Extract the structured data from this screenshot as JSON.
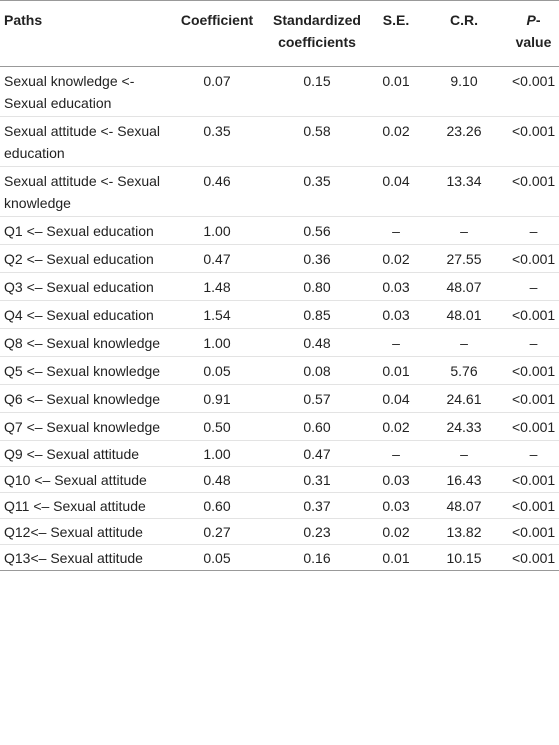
{
  "table": {
    "header": [
      "Paths",
      "Coefficient",
      "Standardized coefficients",
      "S.E.",
      "C.R.",
      "P-value"
    ],
    "rows": [
      [
        "Sexual knowledge <- Sexual education",
        "0.07",
        "0.15",
        "0.01",
        "9.10",
        "<0.001"
      ],
      [
        "Sexual attitude <- Sexual education",
        "0.35",
        "0.58",
        "0.02",
        "23.26",
        "<0.001"
      ],
      [
        "Sexual attitude <- Sexual knowledge",
        "0.46",
        "0.35",
        "0.04",
        "13.34",
        "<0.001"
      ],
      [
        "Q1 <– Sexual education",
        "1.00",
        "0.56",
        "–",
        "–",
        "–"
      ],
      [
        "Q2 <– Sexual education",
        "0.47",
        "0.36",
        "0.02",
        "27.55",
        "<0.001"
      ],
      [
        "Q3 <– Sexual education",
        "1.48",
        "0.80",
        "0.03",
        "48.07",
        "–"
      ],
      [
        "Q4 <– Sexual education",
        "1.54",
        "0.85",
        "0.03",
        "48.01",
        "<0.001"
      ],
      [
        "Q8 <– Sexual knowledge",
        "1.00",
        "0.48",
        "–",
        "–",
        "–"
      ],
      [
        "Q5 <– Sexual knowledge",
        "0.05",
        "0.08",
        "0.01",
        "5.76",
        "<0.001"
      ],
      [
        "Q6 <– Sexual knowledge",
        "0.91",
        "0.57",
        "0.04",
        "24.61",
        "<0.001"
      ],
      [
        "Q7 <– Sexual knowledge",
        "0.50",
        "0.60",
        "0.02",
        "24.33",
        "<0.001"
      ],
      [
        "Q9 <– Sexual attitude",
        "1.00",
        "0.47",
        "–",
        "–",
        "–"
      ],
      [
        "Q10 <– Sexual attitude",
        "0.48",
        "0.31",
        "0.03",
        "16.43",
        "<0.001"
      ],
      [
        "Q11 <– Sexual attitude",
        "0.60",
        "0.37",
        "0.03",
        "48.07",
        "<0.001"
      ],
      [
        "Q12<– Sexual attitude",
        "0.27",
        "0.23",
        "0.02",
        "13.82",
        "<0.001"
      ],
      [
        "Q13<– Sexual attitude",
        "0.05",
        "0.16",
        "0.01",
        "10.15",
        "<0.001"
      ]
    ]
  }
}
